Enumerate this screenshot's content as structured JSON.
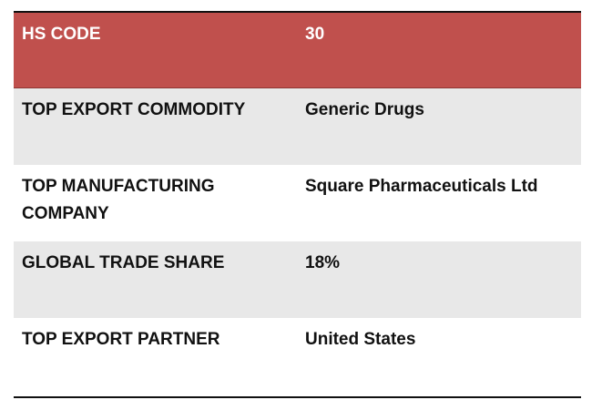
{
  "table": {
    "header": {
      "key": "HS CODE",
      "value": "30"
    },
    "rows": [
      {
        "key": "TOP EXPORT COMMODITY",
        "value": "Generic Drugs"
      },
      {
        "key": "TOP MANUFACTURING\nCOMPANY",
        "value": "Square Pharmaceuticals Ltd"
      },
      {
        "key": "GLOBAL TRADE SHARE",
        "value": "18%"
      },
      {
        "key": "TOP EXPORT PARTNER",
        "value": "United States"
      }
    ]
  },
  "colors": {
    "header_bg": "#c0504d",
    "header_text": "#ffffff",
    "shade_bg": "#e8e8e8",
    "text": "#111111"
  }
}
